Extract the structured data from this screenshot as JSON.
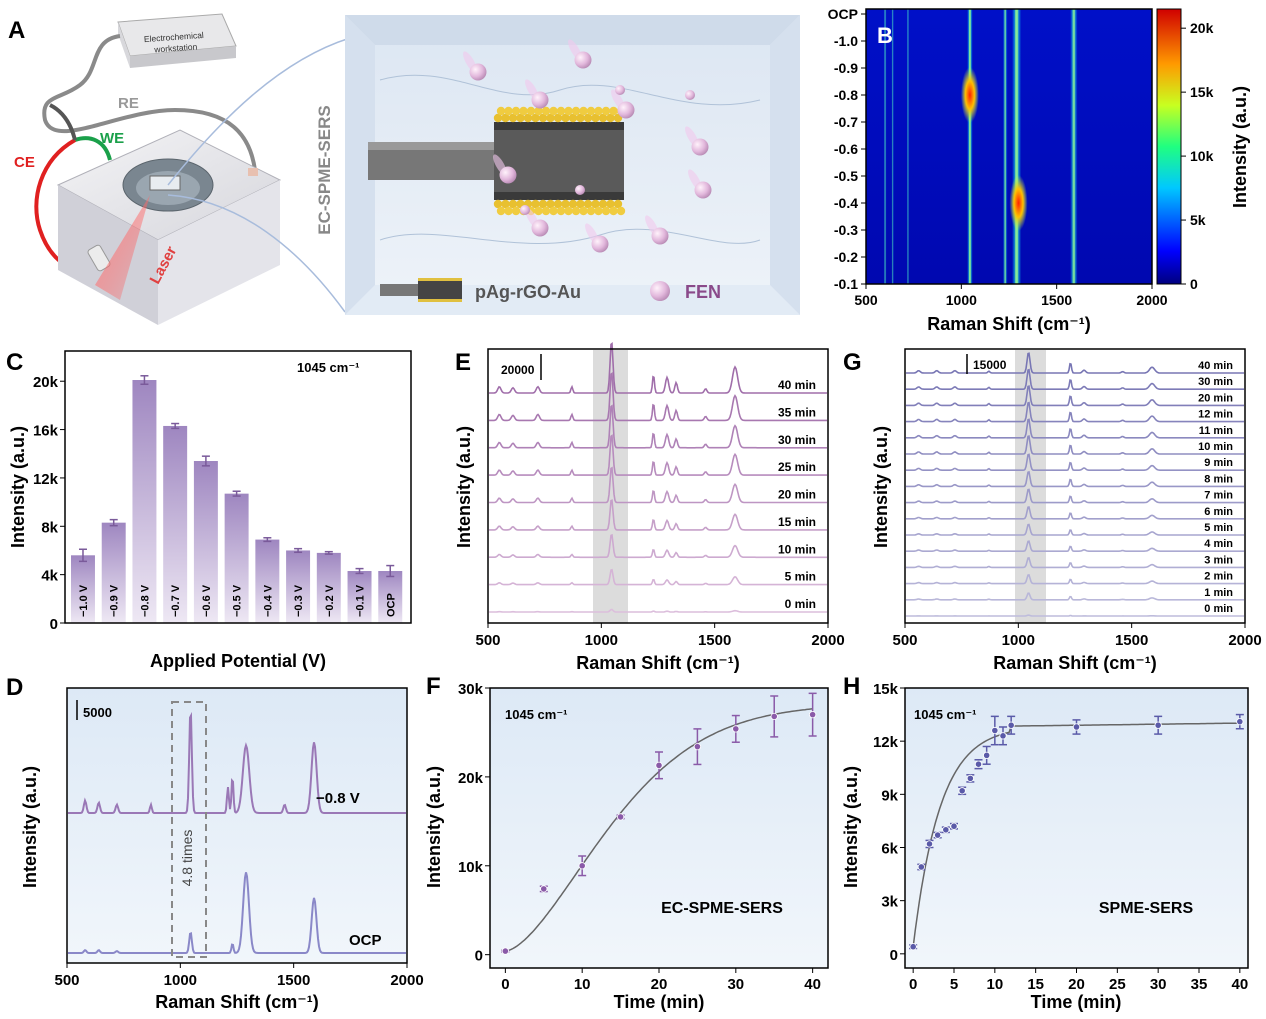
{
  "figure": {
    "panel_letters": [
      "A",
      "B",
      "C",
      "D",
      "E",
      "F",
      "G",
      "H"
    ],
    "colors": {
      "purple": "#8a6aa8",
      "purple_light": "#c8b6dc",
      "blue_line": "#7a78b8",
      "fit_gray": "#666666",
      "highlight": "#dcdcdc",
      "bg_d": "#e4eef8"
    }
  },
  "panelA": {
    "workstation": [
      "Electrochemical",
      "workstation"
    ],
    "re": "RE",
    "we": "WE",
    "ce": "CE",
    "laser": "Laser",
    "side_title": "EC-SPME-SERS",
    "legend_probe": "pAg-rGO-Au",
    "legend_fen": "FEN",
    "colors": {
      "ce": "#e02020",
      "we": "#1aa04a",
      "re": "#999999",
      "laser": "#e04040",
      "fen": "#e0b8dc"
    }
  },
  "chart_data": [
    {
      "id": "B",
      "type": "heatmap",
      "title": "",
      "xlabel": "Raman Shift (cm⁻¹)",
      "ylabel": "",
      "xlim": [
        500,
        2000
      ],
      "x_ticks": [
        "500",
        "1000",
        "1500",
        "2000"
      ],
      "y_ticks": [
        "OCP",
        "-1.0",
        "-0.9",
        "-0.8",
        "-0.7",
        "-0.6",
        "-0.5",
        "-0.4",
        "-0.3",
        "-0.2",
        "-0.1"
      ],
      "colorbar_label": "Intensity (a.u.)",
      "colorbar_ticks": [
        "0",
        "5k",
        "10k",
        "15k",
        "20k"
      ],
      "colorbar_range": [
        0,
        21500
      ],
      "bands": [
        {
          "center": 600,
          "width": 6,
          "level": 0.25
        },
        {
          "center": 640,
          "width": 5,
          "level": 0.2
        },
        {
          "center": 720,
          "width": 5,
          "level": 0.22
        },
        {
          "center": 1045,
          "width": 12,
          "level": 0.6
        },
        {
          "center": 1230,
          "width": 10,
          "level": 0.42
        },
        {
          "center": 1290,
          "width": 20,
          "level": 0.58
        },
        {
          "center": 1590,
          "width": 16,
          "level": 0.5
        }
      ],
      "hotspots": [
        {
          "x": 1045,
          "y": "-0.8"
        },
        {
          "x": 1300,
          "y": "-0.4"
        }
      ]
    },
    {
      "id": "C",
      "type": "bar",
      "title": "1045 cm⁻¹",
      "xlabel": "Applied Potential (V)",
      "ylabel": "Intensity (a.u.)",
      "ylim": [
        0,
        22500
      ],
      "y_ticks": [
        {
          "v": 0,
          "t": "0"
        },
        {
          "v": 4000,
          "t": "4k"
        },
        {
          "v": 8000,
          "t": "8k"
        },
        {
          "v": 12000,
          "t": "12k"
        },
        {
          "v": 16000,
          "t": "16k"
        },
        {
          "v": 20000,
          "t": "20k"
        }
      ],
      "categories": [
        "−1.0 V",
        "−0.9 V",
        "−0.8 V",
        "−0.7 V",
        "−0.6 V",
        "−0.5 V",
        "−0.4 V",
        "−0.3 V",
        "−0.2 V",
        "−0.1 V",
        "OCP"
      ],
      "values": [
        5600,
        8300,
        20100,
        16300,
        13400,
        10700,
        6900,
        6000,
        5800,
        4300,
        4300
      ],
      "errors": [
        500,
        250,
        350,
        200,
        400,
        200,
        150,
        150,
        100,
        200,
        450
      ]
    },
    {
      "id": "D",
      "type": "line",
      "xlabel": "Raman Shift (cm⁻¹)",
      "ylabel": "Intensity (a.u.)",
      "xlim": [
        500,
        2000
      ],
      "x_ticks": [
        "500",
        "1000",
        "1500",
        "2000"
      ],
      "scale_bar": "5000",
      "annotation": "4.8 times",
      "series": [
        {
          "name": "−0.8 V",
          "base": 0.6,
          "scale": 1.0,
          "peaks": [
            [
              580,
              0.12,
              8
            ],
            [
              640,
              0.1,
              8
            ],
            [
              720,
              0.08,
              8
            ],
            [
              870,
              0.08,
              6
            ],
            [
              1045,
              1.0,
              8
            ],
            [
              1210,
              0.25,
              6
            ],
            [
              1230,
              0.35,
              6
            ],
            [
              1290,
              0.65,
              20
            ],
            [
              1460,
              0.08,
              8
            ],
            [
              1590,
              0.68,
              16
            ]
          ]
        },
        {
          "name": "OCP",
          "base": 0.05,
          "scale": 1.0,
          "peaks": [
            [
              580,
              0.03,
              8
            ],
            [
              640,
              0.03,
              8
            ],
            [
              720,
              0.02,
              8
            ],
            [
              1045,
              0.22,
              8
            ],
            [
              1230,
              0.1,
              6
            ],
            [
              1290,
              0.85,
              18
            ],
            [
              1590,
              0.58,
              15
            ]
          ]
        }
      ]
    },
    {
      "id": "E",
      "type": "line",
      "xlabel": "Raman Shift (cm⁻¹)",
      "ylabel": "Intensity (a.u.)",
      "xlim": [
        500,
        2000
      ],
      "x_ticks": [
        "500",
        "1000",
        "1500",
        "2000"
      ],
      "scale_bar": "20000",
      "series_labels": [
        "40 min",
        "35 min",
        "30 min",
        "25 min",
        "20 min",
        "15 min",
        "10 min",
        "5 min",
        "0 min"
      ],
      "amplitudes": [
        1.0,
        0.95,
        0.85,
        0.8,
        0.7,
        0.6,
        0.45,
        0.3,
        0.05
      ]
    },
    {
      "id": "F",
      "type": "scatter",
      "title": "1045 cm⁻¹",
      "xlabel": "Time (min)",
      "ylabel": "Intensity (a.u.)",
      "xlim": [
        -2,
        42
      ],
      "ylim": [
        -1500,
        30000
      ],
      "x_ticks": [
        0,
        10,
        20,
        30,
        40
      ],
      "y_ticks": [
        {
          "v": 0,
          "t": "0"
        },
        {
          "v": 10000,
          "t": "10k"
        },
        {
          "v": 20000,
          "t": "20k"
        },
        {
          "v": 30000,
          "t": "30k"
        }
      ],
      "annotation": "EC-SPME-SERS",
      "x": [
        0,
        5,
        10,
        15,
        20,
        25,
        30,
        35,
        40
      ],
      "y": [
        400,
        7400,
        10000,
        15500,
        21300,
        23400,
        25400,
        26800,
        27000
      ],
      "errors": [
        100,
        300,
        1100,
        200,
        1500,
        2000,
        1500,
        2300,
        2400
      ]
    },
    {
      "id": "G",
      "type": "line",
      "xlabel": "Raman Shift (cm⁻¹)",
      "ylabel": "Intensity (a.u.)",
      "xlim": [
        500,
        2000
      ],
      "x_ticks": [
        "500",
        "1000",
        "1500",
        "2000"
      ],
      "scale_bar": "15000",
      "series_labels": [
        "40 min",
        "30 min",
        "20 min",
        "12 min",
        "11 min",
        "10 min",
        "9 min",
        "8 min",
        "7 min",
        "6 min",
        "5 min",
        "4 min",
        "3 min",
        "2 min",
        "1 min",
        "0 min"
      ],
      "amplitudes": [
        0.75,
        0.74,
        0.73,
        0.72,
        0.7,
        0.68,
        0.6,
        0.55,
        0.5,
        0.45,
        0.4,
        0.38,
        0.36,
        0.33,
        0.25,
        0.03
      ]
    },
    {
      "id": "H",
      "type": "scatter",
      "title": "1045 cm⁻¹",
      "xlabel": "Time (min)",
      "ylabel": "Intensity (a.u.)",
      "xlim": [
        -1,
        41
      ],
      "ylim": [
        -800,
        15000
      ],
      "x_ticks": [
        0,
        5,
        10,
        15,
        20,
        25,
        30,
        35,
        40
      ],
      "y_ticks": [
        {
          "v": 0,
          "t": "0"
        },
        {
          "v": 3000,
          "t": "3k"
        },
        {
          "v": 6000,
          "t": "6k"
        },
        {
          "v": 9000,
          "t": "9k"
        },
        {
          "v": 12000,
          "t": "12k"
        },
        {
          "v": 15000,
          "t": "15k"
        }
      ],
      "annotation": "SPME-SERS",
      "x": [
        0,
        1,
        2,
        3,
        4,
        5,
        6,
        7,
        8,
        9,
        10,
        11,
        12,
        20,
        30,
        40
      ],
      "y": [
        400,
        4900,
        6200,
        6700,
        7000,
        7200,
        9200,
        9900,
        10700,
        11200,
        12600,
        12300,
        12900,
        12800,
        12900,
        13100
      ],
      "errors": [
        100,
        150,
        200,
        150,
        150,
        150,
        200,
        200,
        250,
        500,
        800,
        500,
        500,
        400,
        500,
        400
      ]
    }
  ]
}
